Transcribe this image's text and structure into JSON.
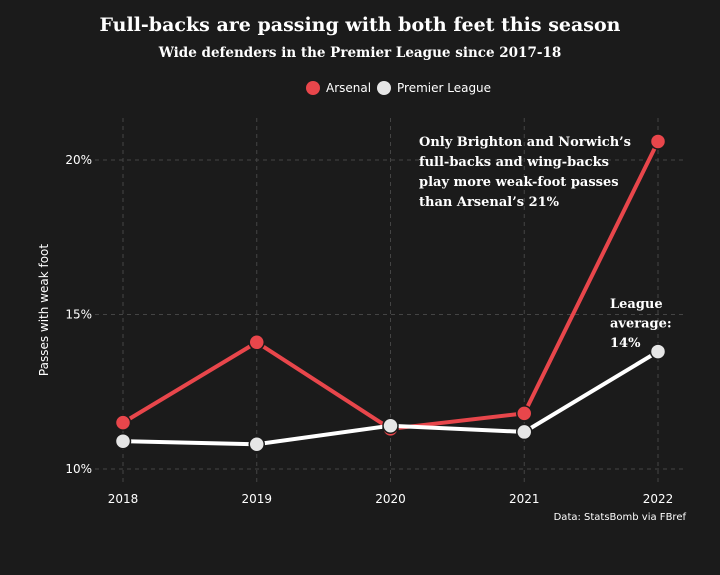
{
  "chart_data": {
    "type": "line",
    "title": "Full-backs are passing with both feet this season",
    "subtitle": "Wide defenders in the Premier League since 2017-18",
    "xlabel": "",
    "ylabel": "Passes with weak foot",
    "x": [
      "2018",
      "2019",
      "2020",
      "2021",
      "2022"
    ],
    "y_ticks": [
      10,
      15,
      20
    ],
    "y_tick_labels": [
      "10%",
      "15%",
      "20%"
    ],
    "grid": true,
    "legend_placement": "top-center",
    "series": [
      {
        "name": "Arsenal",
        "color": "#e8464b",
        "values": [
          11.5,
          14.1,
          11.3,
          11.8,
          20.6
        ]
      },
      {
        "name": "Premier League",
        "color": "#ffffff",
        "marker_color": "#e6e6e6",
        "values": [
          10.9,
          10.8,
          11.4,
          11.2,
          13.8
        ]
      }
    ],
    "annotations": [
      {
        "lines": [
          "Only Brighton and Norwich’s",
          "full-backs and wing-backs",
          "play more weak-foot passes",
          "than Arsenal’s 21%"
        ]
      },
      {
        "lines": [
          "League",
          "average:",
          "14%"
        ]
      }
    ],
    "source": "Data: StatsBomb via FBref"
  }
}
